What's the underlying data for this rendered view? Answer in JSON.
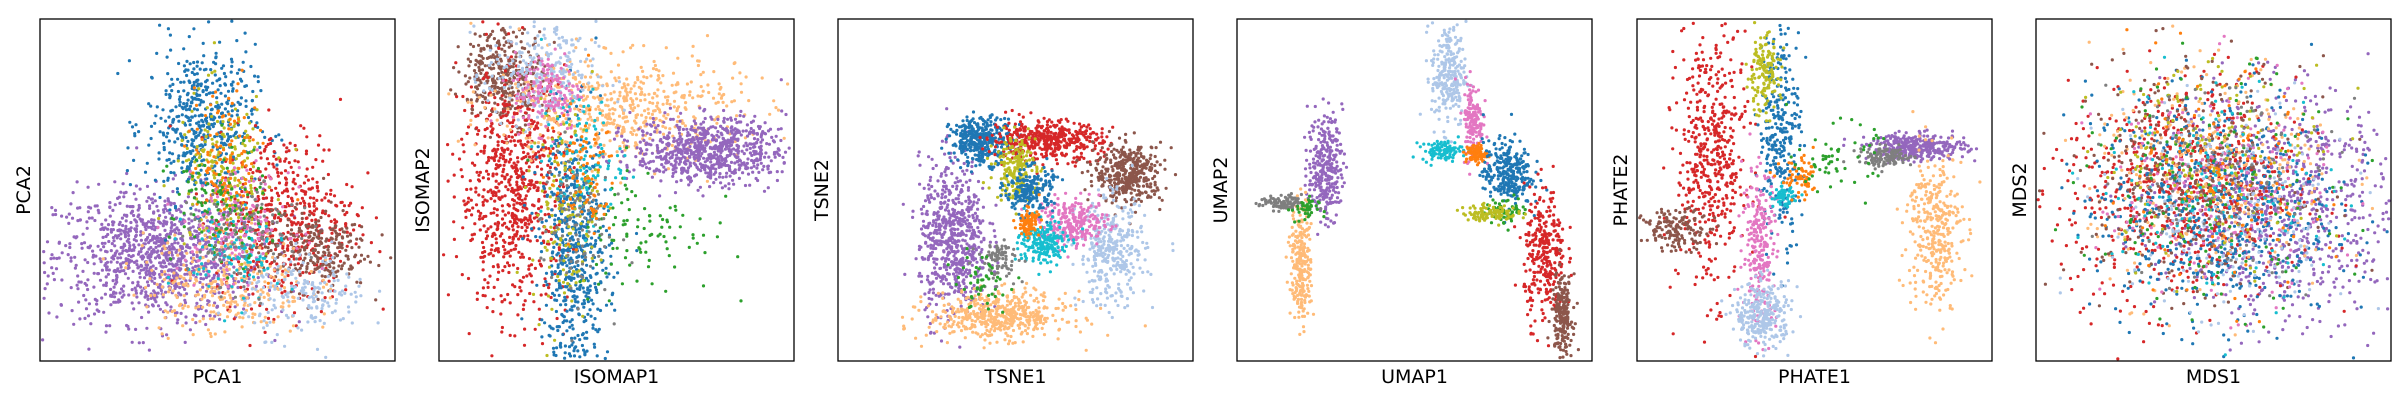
{
  "palette": [
    "#1f77b4",
    "#ff7f0e",
    "#2ca02c",
    "#d62728",
    "#9467bd",
    "#8c564b",
    "#e377c2",
    "#7f7f7f",
    "#bcbd22",
    "#17becf",
    "#aec7e8",
    "#ffbb78"
  ],
  "chart_data": [
    {
      "type": "scatter",
      "method": "PCA",
      "xlabel": "PCA1",
      "ylabel": "PCA2",
      "xticks": [],
      "yticks": [],
      "grid": false,
      "xlim": [
        0,
        1
      ],
      "ylim": [
        0,
        1
      ],
      "clusters": [
        {
          "color": "#9467bd",
          "cx": 0.33,
          "cy": 0.3,
          "sx": 0.15,
          "sy": 0.1,
          "n": 1100
        },
        {
          "color": "#1f77b4",
          "cx": 0.45,
          "cy": 0.7,
          "sx": 0.08,
          "sy": 0.12,
          "n": 500
        },
        {
          "color": "#d62728",
          "cx": 0.7,
          "cy": 0.42,
          "sx": 0.1,
          "sy": 0.13,
          "n": 500
        },
        {
          "color": "#8c564b",
          "cx": 0.78,
          "cy": 0.32,
          "sx": 0.08,
          "sy": 0.06,
          "n": 250
        },
        {
          "color": "#ffbb78",
          "cx": 0.52,
          "cy": 0.22,
          "sx": 0.12,
          "sy": 0.08,
          "n": 300
        },
        {
          "color": "#aec7e8",
          "cx": 0.76,
          "cy": 0.18,
          "sx": 0.09,
          "sy": 0.06,
          "n": 180
        },
        {
          "color": "#bcbd22",
          "cx": 0.52,
          "cy": 0.55,
          "sx": 0.07,
          "sy": 0.12,
          "n": 200
        },
        {
          "color": "#e377c2",
          "cx": 0.55,
          "cy": 0.4,
          "sx": 0.08,
          "sy": 0.08,
          "n": 160
        },
        {
          "color": "#ff7f0e",
          "cx": 0.52,
          "cy": 0.58,
          "sx": 0.05,
          "sy": 0.12,
          "n": 120
        },
        {
          "color": "#17becf",
          "cx": 0.55,
          "cy": 0.3,
          "sx": 0.07,
          "sy": 0.07,
          "n": 100
        },
        {
          "color": "#2ca02c",
          "cx": 0.5,
          "cy": 0.45,
          "sx": 0.07,
          "sy": 0.09,
          "n": 100
        },
        {
          "color": "#7f7f7f",
          "cx": 0.58,
          "cy": 0.35,
          "sx": 0.08,
          "sy": 0.08,
          "n": 100
        }
      ]
    },
    {
      "type": "scatter",
      "method": "ISOMAP",
      "xlabel": "ISOMAP1",
      "ylabel": "ISOMAP2",
      "xticks": [],
      "yticks": [],
      "grid": false,
      "xlim": [
        0,
        1
      ],
      "ylim": [
        0,
        1
      ],
      "clusters": [
        {
          "color": "#8c564b",
          "cx": 0.17,
          "cy": 0.85,
          "sx": 0.06,
          "sy": 0.07,
          "n": 350
        },
        {
          "color": "#d62728",
          "cx": 0.2,
          "cy": 0.5,
          "sx": 0.08,
          "sy": 0.18,
          "n": 750
        },
        {
          "color": "#1f77b4",
          "cx": 0.38,
          "cy": 0.3,
          "sx": 0.05,
          "sy": 0.2,
          "n": 600
        },
        {
          "color": "#ffbb78",
          "cx": 0.5,
          "cy": 0.75,
          "sx": 0.18,
          "sy": 0.08,
          "n": 550
        },
        {
          "color": "#9467bd",
          "cx": 0.77,
          "cy": 0.62,
          "sx": 0.11,
          "sy": 0.05,
          "n": 750
        },
        {
          "color": "#aec7e8",
          "cx": 0.28,
          "cy": 0.85,
          "sx": 0.08,
          "sy": 0.08,
          "n": 250
        },
        {
          "color": "#e377c2",
          "cx": 0.3,
          "cy": 0.8,
          "sx": 0.05,
          "sy": 0.06,
          "n": 150
        },
        {
          "color": "#2ca02c",
          "cx": 0.58,
          "cy": 0.38,
          "sx": 0.1,
          "sy": 0.1,
          "n": 100
        },
        {
          "color": "#bcbd22",
          "cx": 0.35,
          "cy": 0.45,
          "sx": 0.05,
          "sy": 0.15,
          "n": 150
        },
        {
          "color": "#17becf",
          "cx": 0.4,
          "cy": 0.6,
          "sx": 0.06,
          "sy": 0.1,
          "n": 100
        },
        {
          "color": "#7f7f7f",
          "cx": 0.38,
          "cy": 0.4,
          "sx": 0.05,
          "sy": 0.12,
          "n": 100
        },
        {
          "color": "#ff7f0e",
          "cx": 0.4,
          "cy": 0.55,
          "sx": 0.05,
          "sy": 0.1,
          "n": 80
        }
      ]
    },
    {
      "type": "scatter",
      "method": "TSNE",
      "xlabel": "TSNE1",
      "ylabel": "TSNE2",
      "xticks": [],
      "yticks": [],
      "grid": false,
      "xlim": [
        0,
        1
      ],
      "ylim": [
        0,
        1
      ],
      "clusters": [
        {
          "color": "#9467bd",
          "cx": 0.32,
          "cy": 0.35,
          "sx": 0.05,
          "sy": 0.12,
          "n": 650
        },
        {
          "color": "#ffbb78",
          "cx": 0.45,
          "cy": 0.12,
          "sx": 0.1,
          "sy": 0.035,
          "n": 500
        },
        {
          "color": "#1f77b4",
          "cx": 0.4,
          "cy": 0.65,
          "sx": 0.045,
          "sy": 0.035,
          "n": 350
        },
        {
          "color": "#d62728",
          "cx": 0.59,
          "cy": 0.65,
          "sx": 0.08,
          "sy": 0.03,
          "n": 450
        },
        {
          "color": "#8c564b",
          "cx": 0.83,
          "cy": 0.55,
          "sx": 0.05,
          "sy": 0.045,
          "n": 400
        },
        {
          "color": "#aec7e8",
          "cx": 0.78,
          "cy": 0.31,
          "sx": 0.05,
          "sy": 0.08,
          "n": 350
        },
        {
          "color": "#e377c2",
          "cx": 0.67,
          "cy": 0.4,
          "sx": 0.05,
          "sy": 0.035,
          "n": 250
        },
        {
          "color": "#bcbd22",
          "cx": 0.5,
          "cy": 0.57,
          "sx": 0.03,
          "sy": 0.05,
          "n": 200
        },
        {
          "color": "#17becf",
          "cx": 0.58,
          "cy": 0.34,
          "sx": 0.035,
          "sy": 0.035,
          "n": 200
        },
        {
          "color": "#1f77b4",
          "cx": 0.54,
          "cy": 0.5,
          "sx": 0.035,
          "sy": 0.035,
          "n": 200
        },
        {
          "color": "#ff7f0e",
          "cx": 0.54,
          "cy": 0.4,
          "sx": 0.015,
          "sy": 0.02,
          "n": 80
        },
        {
          "color": "#7f7f7f",
          "cx": 0.45,
          "cy": 0.29,
          "sx": 0.03,
          "sy": 0.03,
          "n": 80
        },
        {
          "color": "#2ca02c",
          "cx": 0.4,
          "cy": 0.22,
          "sx": 0.04,
          "sy": 0.04,
          "n": 50
        }
      ]
    },
    {
      "type": "scatter",
      "method": "UMAP",
      "xlabel": "UMAP1",
      "ylabel": "UMAP2",
      "xticks": [],
      "yticks": [],
      "grid": false,
      "xlim": [
        0,
        1
      ],
      "ylim": [
        0,
        1
      ],
      "clusters": [
        {
          "color": "#9467bd",
          "cx": 0.24,
          "cy": 0.57,
          "sx": 0.025,
          "sy": 0.08,
          "n": 300
        },
        {
          "color": "#ffbb78",
          "cx": 0.17,
          "cy": 0.28,
          "sx": 0.015,
          "sy": 0.09,
          "n": 250
        },
        {
          "color": "#7f7f7f",
          "cx": 0.12,
          "cy": 0.46,
          "sx": 0.035,
          "sy": 0.012,
          "n": 100
        },
        {
          "color": "#2ca02c",
          "cx": 0.18,
          "cy": 0.44,
          "sx": 0.02,
          "sy": 0.02,
          "n": 40
        },
        {
          "color": "#aec7e8",
          "cx": 0.6,
          "cy": 0.85,
          "sx": 0.025,
          "sy": 0.08,
          "n": 250
        },
        {
          "color": "#e377c2",
          "cx": 0.67,
          "cy": 0.71,
          "sx": 0.015,
          "sy": 0.06,
          "n": 150
        },
        {
          "color": "#17becf",
          "cx": 0.58,
          "cy": 0.62,
          "sx": 0.03,
          "sy": 0.015,
          "n": 100
        },
        {
          "color": "#ff7f0e",
          "cx": 0.68,
          "cy": 0.61,
          "sx": 0.015,
          "sy": 0.015,
          "n": 80
        },
        {
          "color": "#1f77b4",
          "cx": 0.77,
          "cy": 0.55,
          "sx": 0.035,
          "sy": 0.05,
          "n": 300
        },
        {
          "color": "#2ca02c",
          "cx": 0.77,
          "cy": 0.44,
          "sx": 0.03,
          "sy": 0.02,
          "n": 60
        },
        {
          "color": "#bcbd22",
          "cx": 0.72,
          "cy": 0.43,
          "sx": 0.04,
          "sy": 0.012,
          "n": 100
        },
        {
          "color": "#d62728",
          "cx": 0.88,
          "cy": 0.3,
          "sx": 0.03,
          "sy": 0.1,
          "n": 300
        },
        {
          "color": "#8c564b",
          "cx": 0.93,
          "cy": 0.12,
          "sx": 0.015,
          "sy": 0.06,
          "n": 200
        }
      ]
    },
    {
      "type": "scatter",
      "method": "PHATE",
      "xlabel": "PHATE1",
      "ylabel": "PHATE2",
      "xticks": [],
      "yticks": [],
      "grid": false,
      "xlim": [
        0,
        1
      ],
      "ylim": [
        0,
        1
      ],
      "clusters": [
        {
          "color": "#d62728",
          "cx": 0.2,
          "cy": 0.6,
          "sx": 0.05,
          "sy": 0.2,
          "n": 500
        },
        {
          "color": "#8c564b",
          "cx": 0.1,
          "cy": 0.38,
          "sx": 0.05,
          "sy": 0.03,
          "n": 150
        },
        {
          "color": "#1f77b4",
          "cx": 0.4,
          "cy": 0.68,
          "sx": 0.03,
          "sy": 0.16,
          "n": 300
        },
        {
          "color": "#bcbd22",
          "cx": 0.35,
          "cy": 0.85,
          "sx": 0.025,
          "sy": 0.06,
          "n": 150
        },
        {
          "color": "#e377c2",
          "cx": 0.34,
          "cy": 0.33,
          "sx": 0.025,
          "sy": 0.12,
          "n": 250
        },
        {
          "color": "#aec7e8",
          "cx": 0.35,
          "cy": 0.12,
          "sx": 0.04,
          "sy": 0.05,
          "n": 300
        },
        {
          "color": "#17becf",
          "cx": 0.41,
          "cy": 0.48,
          "sx": 0.015,
          "sy": 0.015,
          "n": 60
        },
        {
          "color": "#ff7f0e",
          "cx": 0.46,
          "cy": 0.53,
          "sx": 0.03,
          "sy": 0.03,
          "n": 60
        },
        {
          "color": "#9467bd",
          "cx": 0.8,
          "cy": 0.63,
          "sx": 0.07,
          "sy": 0.02,
          "n": 350
        },
        {
          "color": "#7f7f7f",
          "cx": 0.71,
          "cy": 0.6,
          "sx": 0.04,
          "sy": 0.015,
          "n": 120
        },
        {
          "color": "#ffbb78",
          "cx": 0.85,
          "cy": 0.38,
          "sx": 0.04,
          "sy": 0.12,
          "n": 350
        },
        {
          "color": "#2ca02c",
          "cx": 0.56,
          "cy": 0.6,
          "sx": 0.06,
          "sy": 0.05,
          "n": 60
        }
      ]
    },
    {
      "type": "scatter",
      "method": "MDS",
      "xlabel": "MDS1",
      "ylabel": "MDS2",
      "xticks": [],
      "yticks": [],
      "grid": false,
      "xlim": [
        0,
        1
      ],
      "ylim": [
        0,
        1
      ],
      "clusters": [
        {
          "color": "#9467bd",
          "cx": 0.7,
          "cy": 0.45,
          "sx": 0.17,
          "sy": 0.17,
          "n": 800
        },
        {
          "color": "#d62728",
          "cx": 0.4,
          "cy": 0.5,
          "sx": 0.17,
          "sy": 0.17,
          "n": 700
        },
        {
          "color": "#1f77b4",
          "cx": 0.5,
          "cy": 0.45,
          "sx": 0.18,
          "sy": 0.18,
          "n": 600
        },
        {
          "color": "#ffbb78",
          "cx": 0.5,
          "cy": 0.55,
          "sx": 0.18,
          "sy": 0.18,
          "n": 300
        },
        {
          "color": "#8c564b",
          "cx": 0.42,
          "cy": 0.55,
          "sx": 0.17,
          "sy": 0.17,
          "n": 300
        },
        {
          "color": "#aec7e8",
          "cx": 0.55,
          "cy": 0.4,
          "sx": 0.18,
          "sy": 0.18,
          "n": 200
        },
        {
          "color": "#e377c2",
          "cx": 0.5,
          "cy": 0.5,
          "sx": 0.17,
          "sy": 0.17,
          "n": 150
        },
        {
          "color": "#2ca02c",
          "cx": 0.5,
          "cy": 0.5,
          "sx": 0.18,
          "sy": 0.18,
          "n": 150
        },
        {
          "color": "#bcbd22",
          "cx": 0.5,
          "cy": 0.6,
          "sx": 0.17,
          "sy": 0.15,
          "n": 150
        },
        {
          "color": "#17becf",
          "cx": 0.5,
          "cy": 0.5,
          "sx": 0.17,
          "sy": 0.17,
          "n": 120
        },
        {
          "color": "#7f7f7f",
          "cx": 0.5,
          "cy": 0.55,
          "sx": 0.17,
          "sy": 0.17,
          "n": 120
        },
        {
          "color": "#ff7f0e",
          "cx": 0.5,
          "cy": 0.5,
          "sx": 0.17,
          "sy": 0.17,
          "n": 100
        }
      ]
    }
  ]
}
